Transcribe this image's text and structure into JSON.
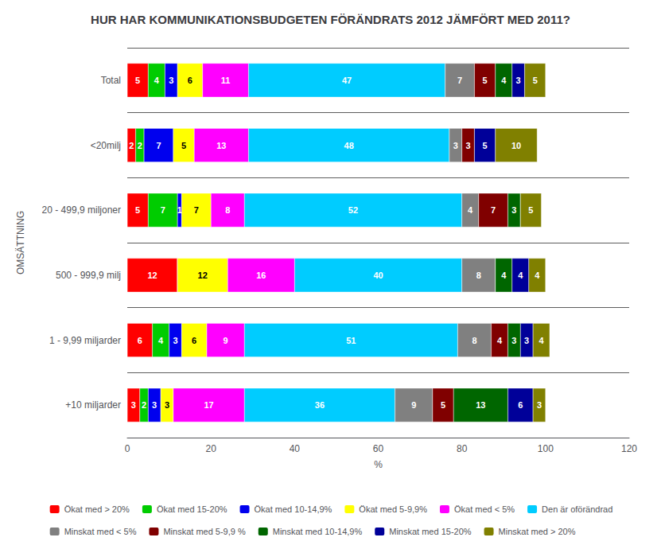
{
  "chart_data": {
    "type": "bar",
    "orientation": "horizontal",
    "stacked": true,
    "data_labels": true,
    "grid": true,
    "legend": "bottom",
    "title": "HUR HAR KOMMUNIKATIONSBUDGETEN FÖRÄNDRATS 2012 JÄMFÖRT MED 2011?",
    "xlabel": "%",
    "ylabel": "OMSÄTTNING",
    "categories": [
      "+10 miljarder",
      "1 - 9,99 miljarder",
      "500 - 999,9 milj",
      "20 - 499,9 miljoner",
      "<20milj",
      "Total"
    ],
    "xlim": [
      0,
      120
    ],
    "xticks": [
      0,
      20,
      40,
      60,
      80,
      100,
      120
    ],
    "series": [
      {
        "name": "Ökat med > 20%",
        "color": "#ff0000",
        "values": [
          3,
          6,
          12,
          5,
          2,
          5
        ]
      },
      {
        "name": "Ökat med 15-20%",
        "color": "#00cc00",
        "values": [
          2,
          4,
          0,
          7,
          2,
          4
        ]
      },
      {
        "name": "Ökat med 10-14,9%",
        "color": "#0000ee",
        "values": [
          3,
          3,
          0,
          1,
          7,
          3
        ]
      },
      {
        "name": "Ökat med 5-9,9%",
        "color": "#ffff00",
        "values": [
          3,
          6,
          12,
          7,
          5,
          6
        ]
      },
      {
        "name": "Ökat med < 5%",
        "color": "#ff00ff",
        "values": [
          17,
          9,
          16,
          8,
          13,
          11
        ]
      },
      {
        "name": "Den är oförändrad",
        "color": "#00ccff",
        "values": [
          36,
          51,
          40,
          52,
          48,
          47
        ]
      },
      {
        "name": "Minskat med < 5%",
        "color": "#808080",
        "values": [
          9,
          8,
          8,
          4,
          3,
          7
        ]
      },
      {
        "name": "Minskat med 5-9,9 %",
        "color": "#800000",
        "values": [
          5,
          4,
          0,
          7,
          3,
          5
        ]
      },
      {
        "name": "Minskat med 10-14,9%",
        "color": "#006600",
        "values": [
          13,
          3,
          4,
          3,
          0,
          4
        ]
      },
      {
        "name": "Minskat med 15-20%",
        "color": "#000099",
        "values": [
          6,
          3,
          4,
          0,
          5,
          3
        ]
      },
      {
        "name": "Minskat med > 20%",
        "color": "#808000",
        "values": [
          3,
          4,
          4,
          5,
          10,
          5
        ]
      }
    ]
  }
}
